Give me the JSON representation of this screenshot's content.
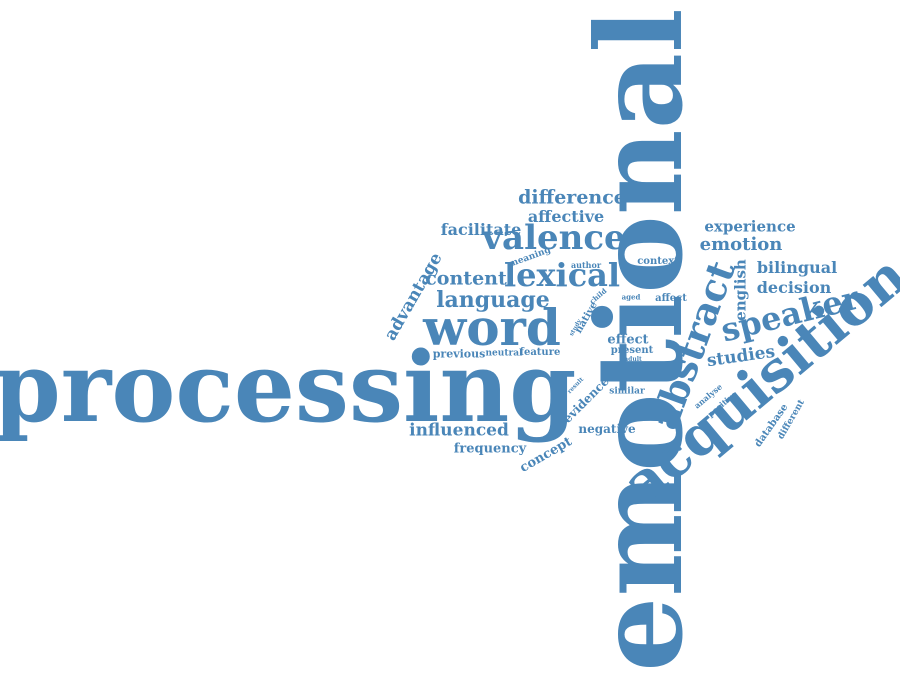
{
  "color": "#4a86b8",
  "words": {
    "processing": "processing",
    "emotional": "emotional",
    "acquisition": "acquisition",
    "abstract": "abstract",
    "word": "word",
    "valence": "valence",
    "lexical": "lexical",
    "speaker": "speaker",
    "language": "language",
    "content": "content",
    "difference": "difference",
    "affective": "affective",
    "facilitate": "facilitate",
    "emotion": "emotion",
    "experience": "experience",
    "bilingual": "bilingual",
    "decision": "decision",
    "english": "english",
    "studies": "studies",
    "advantage": "advantage",
    "influenced": "influenced",
    "frequency": "frequency",
    "concept": "concept",
    "negative": "negative",
    "evidence": "evidence",
    "previous": "previous",
    "neutral": "neutral",
    "feature": "feature",
    "effect": "effect",
    "present": "present",
    "context": "context",
    "affect": "affect",
    "meaning": "meaning",
    "author": "author",
    "native": "native",
    "child": "child",
    "aged": "aged",
    "study": "study",
    "adult": "adult",
    "similar": "similar",
    "result": "result",
    "analyse": "analyse",
    "positive": "positive",
    "database": "database",
    "different": "different"
  }
}
